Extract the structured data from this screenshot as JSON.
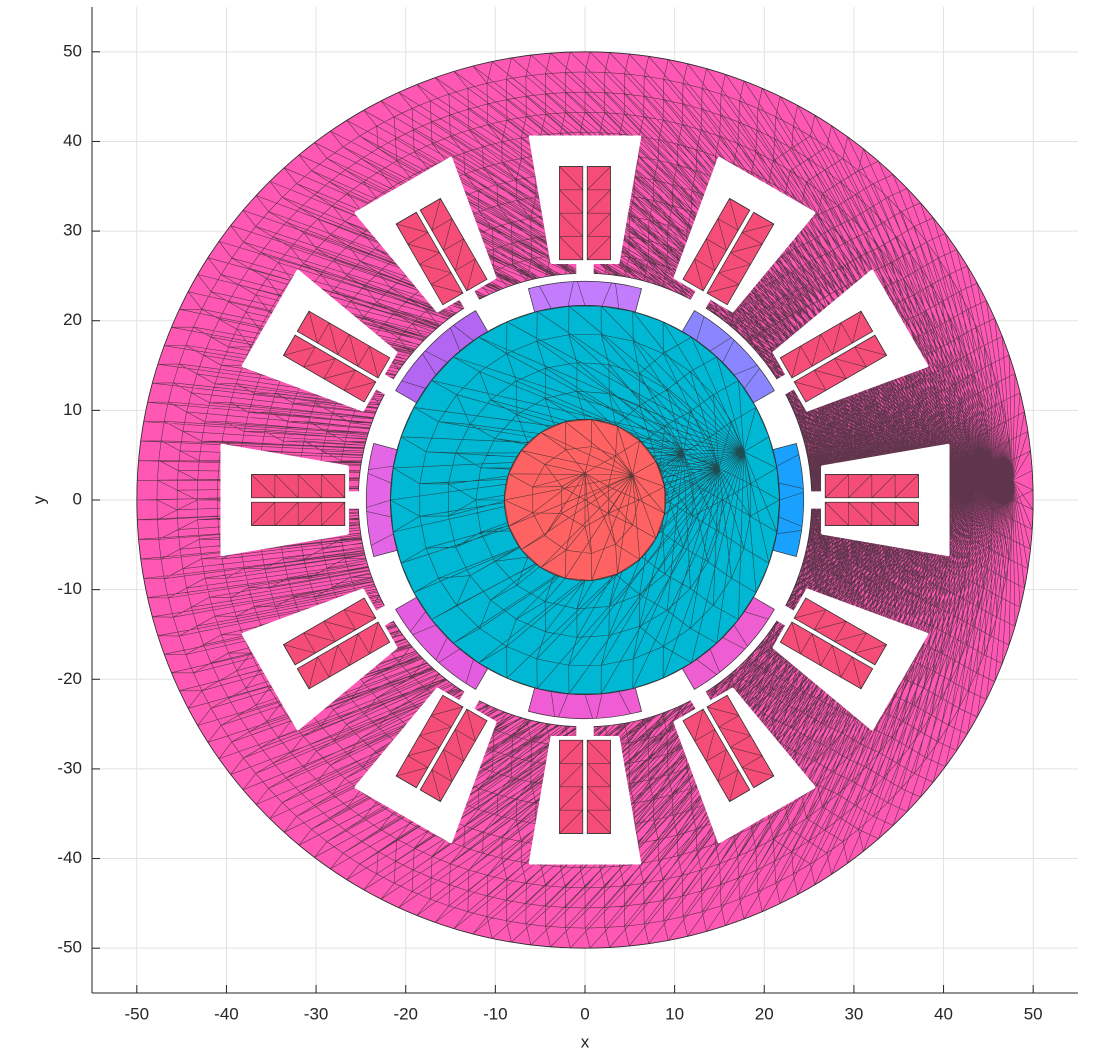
{
  "chart_data": {
    "type": "mesh",
    "xlabel": "x",
    "ylabel": "y",
    "xlim": [
      -55,
      55
    ],
    "ylim": [
      -55,
      55
    ],
    "xticks": [
      -50,
      -40,
      -30,
      -20,
      -10,
      0,
      10,
      20,
      30,
      40,
      50
    ],
    "yticks": [
      -50,
      -40,
      -30,
      -20,
      -10,
      0,
      10,
      20,
      30,
      40,
      50
    ],
    "grid": true,
    "stator": {
      "r_outer": 50,
      "r_inner": 25.3,
      "color": "#ff58b4",
      "slot_angles": [
        0,
        30,
        60,
        90,
        120,
        150,
        180,
        210,
        240,
        270,
        300,
        330
      ],
      "slot": {
        "r_neck": 24.5,
        "r_base": 26.5,
        "r_top": 40.5,
        "neck_half_width": 0.8,
        "base_half_width": 3.7,
        "top_half_width": 6.1
      }
    },
    "coil": {
      "r_start": 26.8,
      "r_end": 37.2,
      "width": 2.6,
      "gap": 0.5,
      "color": "#f64c78"
    },
    "rotor": {
      "r": 21.7,
      "color": "#00b8d4"
    },
    "shaft": {
      "r": 9,
      "color": "#ff6262"
    },
    "magnets": {
      "r_inner": 21.7,
      "r_outer": 24.4,
      "half_span": 15,
      "angles": [
        0,
        45,
        90,
        135,
        180,
        225,
        270,
        315
      ],
      "colors": [
        "#1aa0ff",
        "#8a86ff",
        "#c47cff",
        "#b266f2",
        "#e366e6",
        "#e45ce0",
        "#f05cd4",
        "#ee5ed2"
      ]
    }
  }
}
